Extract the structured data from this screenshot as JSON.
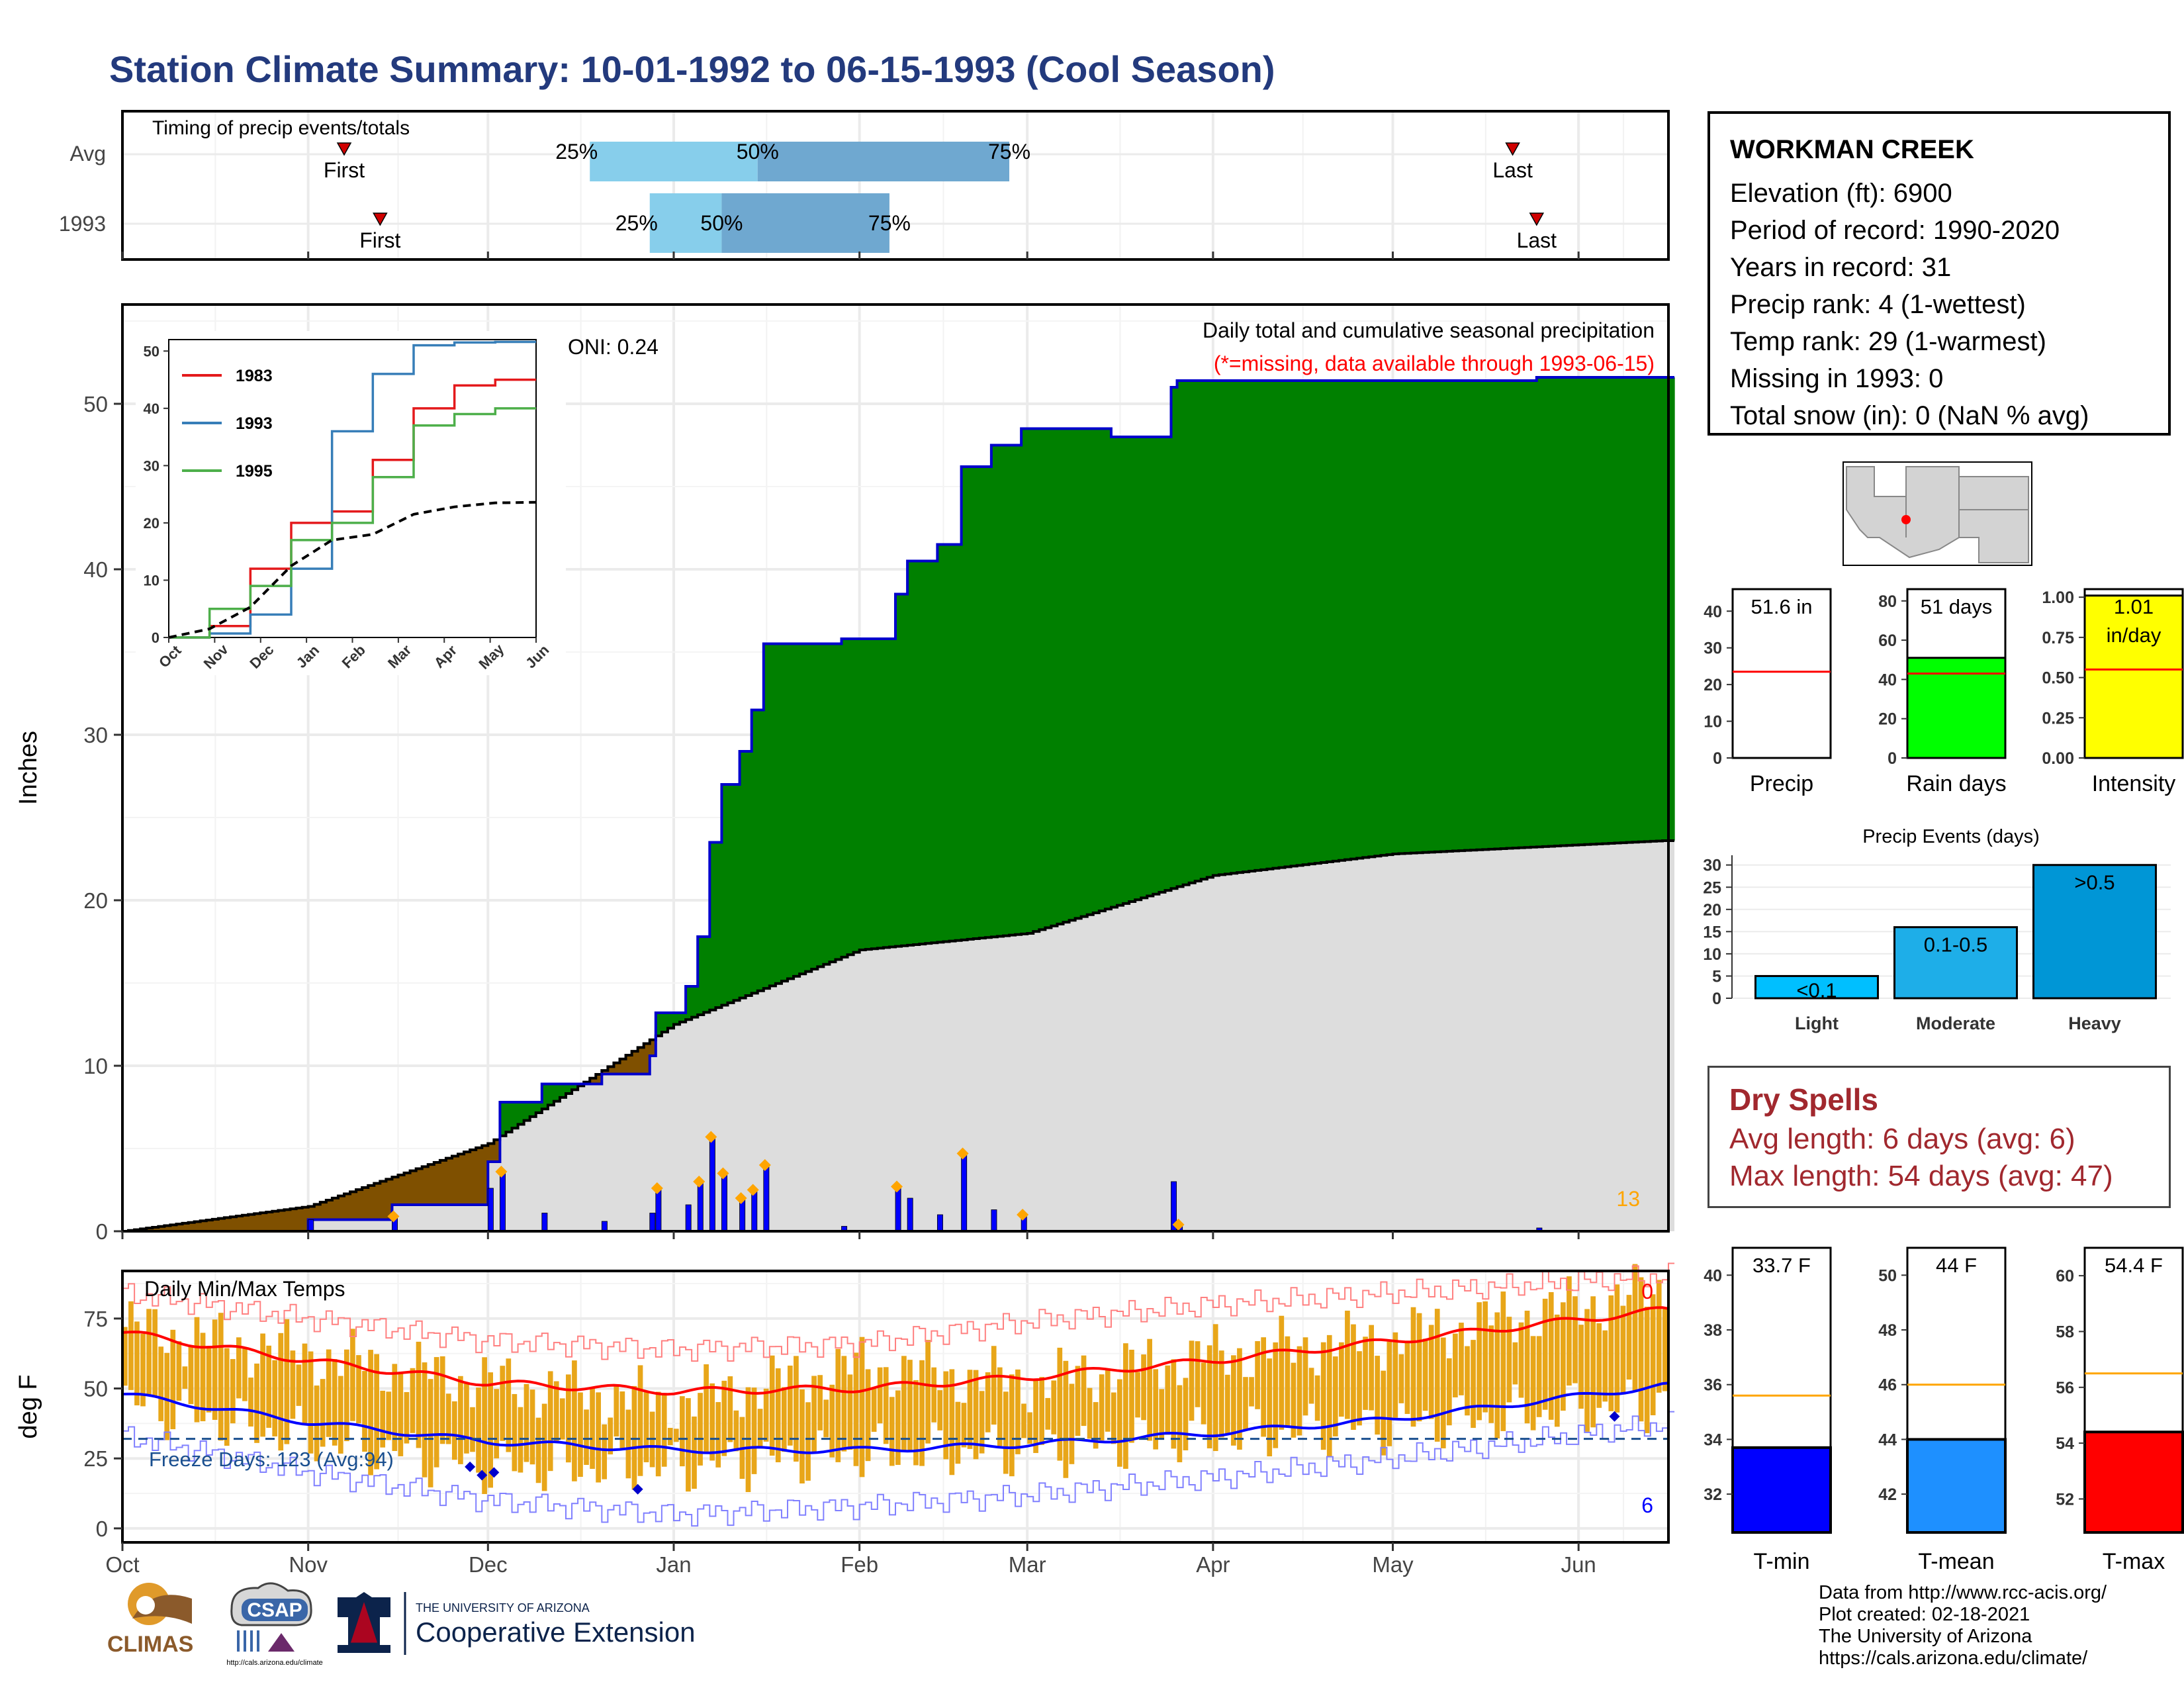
{
  "title": "Station Climate Summary: 10-01-1992 to 06-15-1993 (Cool Season)",
  "colors": {
    "title": "#233a7d",
    "cumulative_green": "#008000",
    "cumulative_brown": "#7f5000",
    "average_gray": "#dddddd",
    "daily_bars": "#0000ff",
    "event_markers": "#ffa500",
    "dry_spells": "#a1282e",
    "tmin": "#0000ff",
    "tmean": "#1e90ff",
    "tmax": "#ff0000",
    "temp_range": "#e8a619",
    "quartile_light": "#87ceeb",
    "quartile_dark": "#6fa8d0"
  },
  "timing_panel": {
    "title": "Timing of precip events/totals",
    "rows": [
      {
        "label": "Avg",
        "first": "First",
        "last": "Last",
        "q25": "25%",
        "q50": "50%",
        "q75": "75%"
      },
      {
        "label": "1993",
        "first": "First",
        "last": "Last",
        "q25": "25%",
        "q50": "50%",
        "q75": "75%"
      }
    ]
  },
  "precip_panel": {
    "ylabel": "Inches",
    "title": "Daily total and cumulative seasonal precipitation",
    "subtitle": "(*=missing, data available through 1993-06-15)",
    "oni": "ONI: 0.24",
    "corner_count": "13",
    "y_ticks": [
      "0",
      "10",
      "20",
      "30",
      "40",
      "50"
    ]
  },
  "inset": {
    "legend": [
      "1983",
      "1993",
      "1995"
    ],
    "y_ticks": [
      "0",
      "10",
      "20",
      "30",
      "40",
      "50"
    ],
    "x_ticks": [
      "Oct",
      "Nov",
      "Dec",
      "Jan",
      "Feb",
      "Mar",
      "Apr",
      "May",
      "Jun"
    ]
  },
  "temp_panel": {
    "ylabel": "deg F",
    "title": "Daily Min/Max Temps",
    "freeze_label": "Freeze Days: 123 (Avg:94)",
    "top_count": "0",
    "bottom_count": "6",
    "y_ticks": [
      "0",
      "25",
      "50",
      "75"
    ]
  },
  "x_axis_months": [
    "Oct",
    "Nov",
    "Dec",
    "Jan",
    "Feb",
    "Mar",
    "Apr",
    "May",
    "Jun"
  ],
  "station": {
    "name": "WORKMAN CREEK",
    "lines": [
      "Elevation (ft): 6900",
      "Period of record: 1990-2020",
      "Years in record: 31",
      "Precip rank: 4 (1-wettest)",
      "Temp rank: 29 (1-warmest)",
      "Missing in 1993: 0",
      "Total snow (in): 0 (NaN % avg)"
    ]
  },
  "mini_bars": [
    {
      "label": "Precip",
      "value_text": "51.6 in",
      "ticks": [
        "0",
        "10",
        "20",
        "30",
        "40"
      ]
    },
    {
      "label": "Rain days",
      "value_text": "51 days",
      "ticks": [
        "0",
        "20",
        "40",
        "60",
        "80"
      ]
    },
    {
      "label": "Intensity",
      "value_text_1": "1.01",
      "value_text_2": "in/day",
      "ticks": [
        "0.00",
        "0.25",
        "0.50",
        "0.75",
        "1.00"
      ]
    }
  ],
  "events_panel": {
    "title": "Precip Events (days)",
    "ticks": [
      "0",
      "5",
      "10",
      "15",
      "20",
      "25",
      "30"
    ]
  },
  "dry_spells": {
    "title": "Dry Spells",
    "avg_length": "Avg length: 6 days (avg: 6)",
    "max_length": "Max length: 54 days (avg: 47)"
  },
  "temp_bars": [
    {
      "label": "T-min",
      "value_text": "33.7 F",
      "ticks": [
        "32",
        "34",
        "36",
        "38",
        "40"
      ]
    },
    {
      "label": "T-mean",
      "value_text": "44 F",
      "ticks": [
        "42",
        "44",
        "46",
        "48",
        "50"
      ]
    },
    {
      "label": "T-max",
      "value_text": "54.4 F",
      "ticks": [
        "52",
        "54",
        "56",
        "58",
        "60"
      ]
    }
  ],
  "credits": [
    "Data from http://www.rcc-acis.org/",
    "Plot created: 02-18-2021",
    "The University of Arizona",
    "https://cals.arizona.edu/climate/"
  ],
  "logos": {
    "climas": "CLIMAS",
    "csap": "CSAP",
    "csap_url": "http://cals.arizona.edu/climate",
    "ua_small": "THE UNIVERSITY OF ARIZONA",
    "ua_big": "Cooperative Extension"
  },
  "chart_data": [
    {
      "type": "bar",
      "name": "timing",
      "categories": [
        "Avg",
        "1993"
      ],
      "series": [
        {
          "name": "25%",
          "values": [
            "1992-12-18",
            "1992-12-28"
          ]
        },
        {
          "name": "50%",
          "values": [
            "1993-01-15",
            "1993-01-09"
          ]
        },
        {
          "name": "75%",
          "values": [
            "1993-02-26",
            "1993-02-06"
          ]
        }
      ],
      "first": [
        "1992-11-07",
        "1992-11-13"
      ],
      "last": [
        "1993-05-21",
        "1993-05-25"
      ]
    },
    {
      "type": "area",
      "name": "cumulative_precip",
      "title": "Daily total and cumulative seasonal precipitation",
      "ylabel": "Inches",
      "ylim": [
        0,
        56
      ],
      "x_range": [
        "1992-10-01",
        "1993-06-15"
      ],
      "cumulative_1993": [
        [
          "1992-10-01",
          0
        ],
        [
          "1992-11-01",
          0.7
        ],
        [
          "1992-11-15",
          1.6
        ],
        [
          "1992-11-30",
          1.6
        ],
        [
          "1992-12-01",
          4.2
        ],
        [
          "1992-12-03",
          7.8
        ],
        [
          "1992-12-10",
          8.9
        ],
        [
          "1992-12-20",
          9.5
        ],
        [
          "1992-12-28",
          10.6
        ],
        [
          "1992-12-29",
          13.2
        ],
        [
          "1993-01-03",
          14.8
        ],
        [
          "1993-01-05",
          17.8
        ],
        [
          "1993-01-07",
          23.5
        ],
        [
          "1993-01-09",
          27.0
        ],
        [
          "1993-01-12",
          29.0
        ],
        [
          "1993-01-14",
          31.5
        ],
        [
          "1993-01-16",
          35.5
        ],
        [
          "1993-01-29",
          35.8
        ],
        [
          "1993-02-07",
          38.5
        ],
        [
          "1993-02-09",
          40.5
        ],
        [
          "1993-02-14",
          41.5
        ],
        [
          "1993-02-18",
          46.2
        ],
        [
          "1993-02-23",
          47.5
        ],
        [
          "1993-02-28",
          48.5
        ],
        [
          "1993-03-15",
          48.0
        ],
        [
          "1993-03-25",
          51.0
        ],
        [
          "1993-03-26",
          51.4
        ],
        [
          "1993-05-25",
          51.6
        ],
        [
          "1993-06-15",
          51.6
        ]
      ],
      "average_cumulative": [
        [
          "1992-10-01",
          0
        ],
        [
          "1992-11-01",
          1.5
        ],
        [
          "1992-12-01",
          5.3
        ],
        [
          "1993-01-01",
          12.5
        ],
        [
          "1993-02-01",
          17.0
        ],
        [
          "1993-03-01",
          18.0
        ],
        [
          "1993-04-01",
          21.5
        ],
        [
          "1993-05-01",
          22.8
        ],
        [
          "1993-06-15",
          23.6
        ]
      ],
      "event_days": [
        "1992-11-15",
        "1992-12-03",
        "1992-12-29",
        "1993-01-05",
        "1993-01-07",
        "1993-01-09",
        "1993-01-12",
        "1993-01-14",
        "1993-01-16",
        "1993-02-07",
        "1993-02-18",
        "1993-02-28",
        "1993-03-26"
      ]
    },
    {
      "type": "line",
      "name": "inset_cumulative",
      "x_ticks": [
        "Oct",
        "Nov",
        "Dec",
        "Jan",
        "Feb",
        "Mar",
        "Apr",
        "May",
        "Jun"
      ],
      "ylim": [
        0,
        52
      ],
      "series": [
        {
          "name": "1983",
          "values": [
            0,
            2,
            12,
            20,
            22,
            31,
            40,
            44,
            45,
            45
          ]
        },
        {
          "name": "1993",
          "values": [
            0,
            0.7,
            4,
            12,
            36,
            46,
            51,
            51.5,
            51.6,
            51.6
          ]
        },
        {
          "name": "1995",
          "values": [
            0,
            5,
            9,
            17,
            20,
            28,
            37,
            39,
            40,
            40
          ]
        },
        {
          "name": "average",
          "values": [
            0,
            1.5,
            5.3,
            12.5,
            17,
            18,
            21.5,
            22.8,
            23.5,
            23.6
          ]
        }
      ]
    },
    {
      "type": "bar",
      "name": "precip_events",
      "title": "Precip Events (days)",
      "categories": [
        "Light",
        "Moderate",
        "Heavy"
      ],
      "values": [
        5,
        16,
        30
      ],
      "labels": [
        "<0.1",
        "0.1-0.5",
        ">0.5"
      ],
      "ylim": [
        0,
        31
      ]
    },
    {
      "type": "bar",
      "name": "season_totals",
      "categories": [
        "Precip",
        "Rain days",
        "Intensity"
      ],
      "values": [
        51.6,
        51,
        1.01
      ],
      "averages": [
        23.5,
        43,
        0.55
      ],
      "ylims": [
        [
          0,
          46
        ],
        [
          0,
          86
        ],
        [
          0,
          1.05
        ]
      ]
    },
    {
      "type": "bar",
      "name": "season_temperatures",
      "categories": [
        "T-min",
        "T-mean",
        "T-max"
      ],
      "values": [
        33.7,
        44,
        54.4
      ],
      "averages": [
        35.6,
        46,
        56.5
      ],
      "ylims": [
        [
          30.6,
          41
        ],
        [
          40.6,
          51
        ],
        [
          50.8,
          61
        ]
      ]
    },
    {
      "type": "line",
      "name": "daily_temps",
      "title": "Daily Min/Max Temps",
      "ylabel": "deg F",
      "ylim": [
        -5,
        92
      ],
      "freeze_line": 32,
      "avg_max": [
        [
          "1992-10-01",
          70
        ],
        [
          "1992-11-01",
          60
        ],
        [
          "1992-12-01",
          52
        ],
        [
          "1993-01-01",
          49
        ],
        [
          "1993-02-01",
          50
        ],
        [
          "1993-03-01",
          54
        ],
        [
          "1993-04-01",
          60
        ],
        [
          "1993-05-01",
          67
        ],
        [
          "1993-06-15",
          78
        ]
      ],
      "avg_min": [
        [
          "1992-10-01",
          48
        ],
        [
          "1992-11-01",
          38
        ],
        [
          "1992-12-01",
          31
        ],
        [
          "1993-01-01",
          28
        ],
        [
          "1993-02-01",
          28
        ],
        [
          "1993-03-01",
          30
        ],
        [
          "1993-04-01",
          34
        ],
        [
          "1993-05-01",
          39
        ],
        [
          "1993-06-15",
          51
        ]
      ],
      "record_max": [
        [
          "1992-10-01",
          84
        ],
        [
          "1992-11-01",
          75
        ],
        [
          "1992-12-01",
          67
        ],
        [
          "1993-01-01",
          64
        ],
        [
          "1993-02-01",
          66
        ],
        [
          "1993-03-01",
          74
        ],
        [
          "1993-04-01",
          80
        ],
        [
          "1993-05-01",
          84
        ],
        [
          "1993-06-15",
          90
        ]
      ],
      "record_min": [
        [
          "1992-10-01",
          33
        ],
        [
          "1992-11-01",
          20
        ],
        [
          "1992-12-01",
          10
        ],
        [
          "1993-01-01",
          5
        ],
        [
          "1993-02-01",
          8
        ],
        [
          "1993-03-01",
          12
        ],
        [
          "1993-04-01",
          18
        ],
        [
          "1993-05-01",
          25
        ],
        [
          "1993-06-15",
          37
        ]
      ],
      "obs_max": [
        [
          "1992-10-01",
          72
        ],
        [
          "1992-11-01",
          62
        ],
        [
          "1992-12-01",
          52
        ],
        [
          "1993-01-01",
          45
        ],
        [
          "1993-02-01",
          58
        ],
        [
          "1993-03-01",
          52
        ],
        [
          "1993-04-01",
          62
        ],
        [
          "1993-05-01",
          68
        ],
        [
          "1993-06-15",
          85
        ]
      ],
      "obs_min": [
        [
          "1992-10-01",
          45
        ],
        [
          "1992-11-01",
          32
        ],
        [
          "1992-12-01",
          22
        ],
        [
          "1993-01-01",
          22
        ],
        [
          "1993-02-01",
          27
        ],
        [
          "1993-03-01",
          28
        ],
        [
          "1993-04-01",
          33
        ],
        [
          "1993-05-01",
          37
        ],
        [
          "1993-06-15",
          45
        ]
      ]
    }
  ]
}
